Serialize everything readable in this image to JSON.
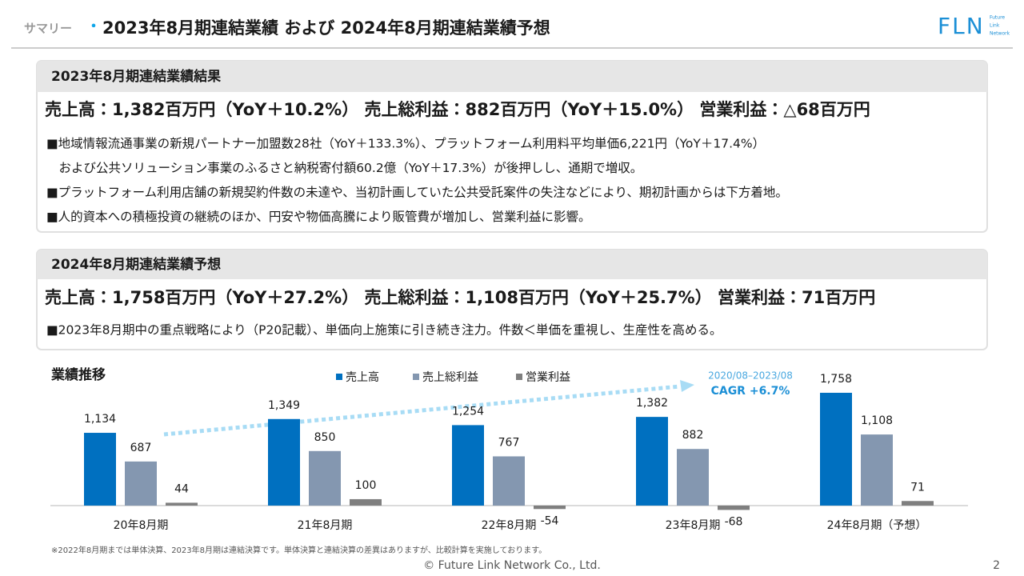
{
  "header": {
    "section": "サマリー",
    "separator": "・",
    "title": "2023年8月期連結業績 および 2024年8月期連結業績予想",
    "logo": "FLN",
    "logo_sub": [
      "Future",
      "Link",
      "Network"
    ]
  },
  "result": {
    "heading": "2023年8月期連結業績結果",
    "summary": "売上高：1,382百万円（YoY＋10.2%） 売上総利益：882百万円（YoY＋15.0%） 営業利益：△68百万円",
    "lines": [
      "■地域情報流通事業の新規パートナー加盟数28社（YoY＋133.3%）、プラットフォーム利用料平均単価6,221円（YoY＋17.4%）",
      "　および公共ソリューション事業のふるさと納税寄付額60.2億（YoY＋17.3%）が後押しし、通期で増収。",
      "■プラットフォーム利用店舗の新規契約件数の未達や、当初計画していた公共受託案件の失注などにより、期初計画からは下方着地。",
      "■人的資本への積極投資の継続のほか、円安や物価高騰により販管費が増加し、営業利益に影響。"
    ]
  },
  "forecast": {
    "heading": "2024年8月期連結業績予想",
    "summary": "売上高：1,758百万円（YoY＋27.2%） 売上総利益：1,108百万円（YoY＋25.7%） 営業利益：71百万円",
    "lines": [
      "■2023年8月期中の重点戦略により（P20記載）、単価向上施策に引き続き注力。件数＜単価を重視し、生産性を高める。"
    ]
  },
  "chart_data": {
    "type": "bar",
    "title": "業績推移",
    "categories": [
      "20年8月期",
      "21年8月期",
      "22年8月期",
      "23年8月期",
      "24年8月期（予想）"
    ],
    "series": [
      {
        "name": "売上高",
        "color": "#0070c0",
        "values": [
          1134,
          1349,
          1254,
          1382,
          1758
        ],
        "value_labels": [
          "1,134",
          "1,349",
          "1,254",
          "1,382",
          "1,758"
        ]
      },
      {
        "name": "売上総利益",
        "color": "#8497b0",
        "values": [
          687,
          850,
          767,
          882,
          1108
        ],
        "value_labels": [
          "687",
          "850",
          "767",
          "882",
          "1,108"
        ]
      },
      {
        "name": "営業利益",
        "color": "#7f7f7f",
        "values": [
          44,
          100,
          -54,
          -68,
          71
        ]
      }
    ],
    "ylim": [
      -200,
      1900
    ],
    "annotation": {
      "period": "2020/08–2023/08",
      "text": "CAGR +6.7%"
    }
  },
  "footnote": "※2022年8月期までは単体決算、2023年8月期は連結決算です。単体決算と連結決算の差異はありますが、比較計算を実施しております。",
  "copyright": "© Future Link Network Co., Ltd.",
  "page": "2"
}
